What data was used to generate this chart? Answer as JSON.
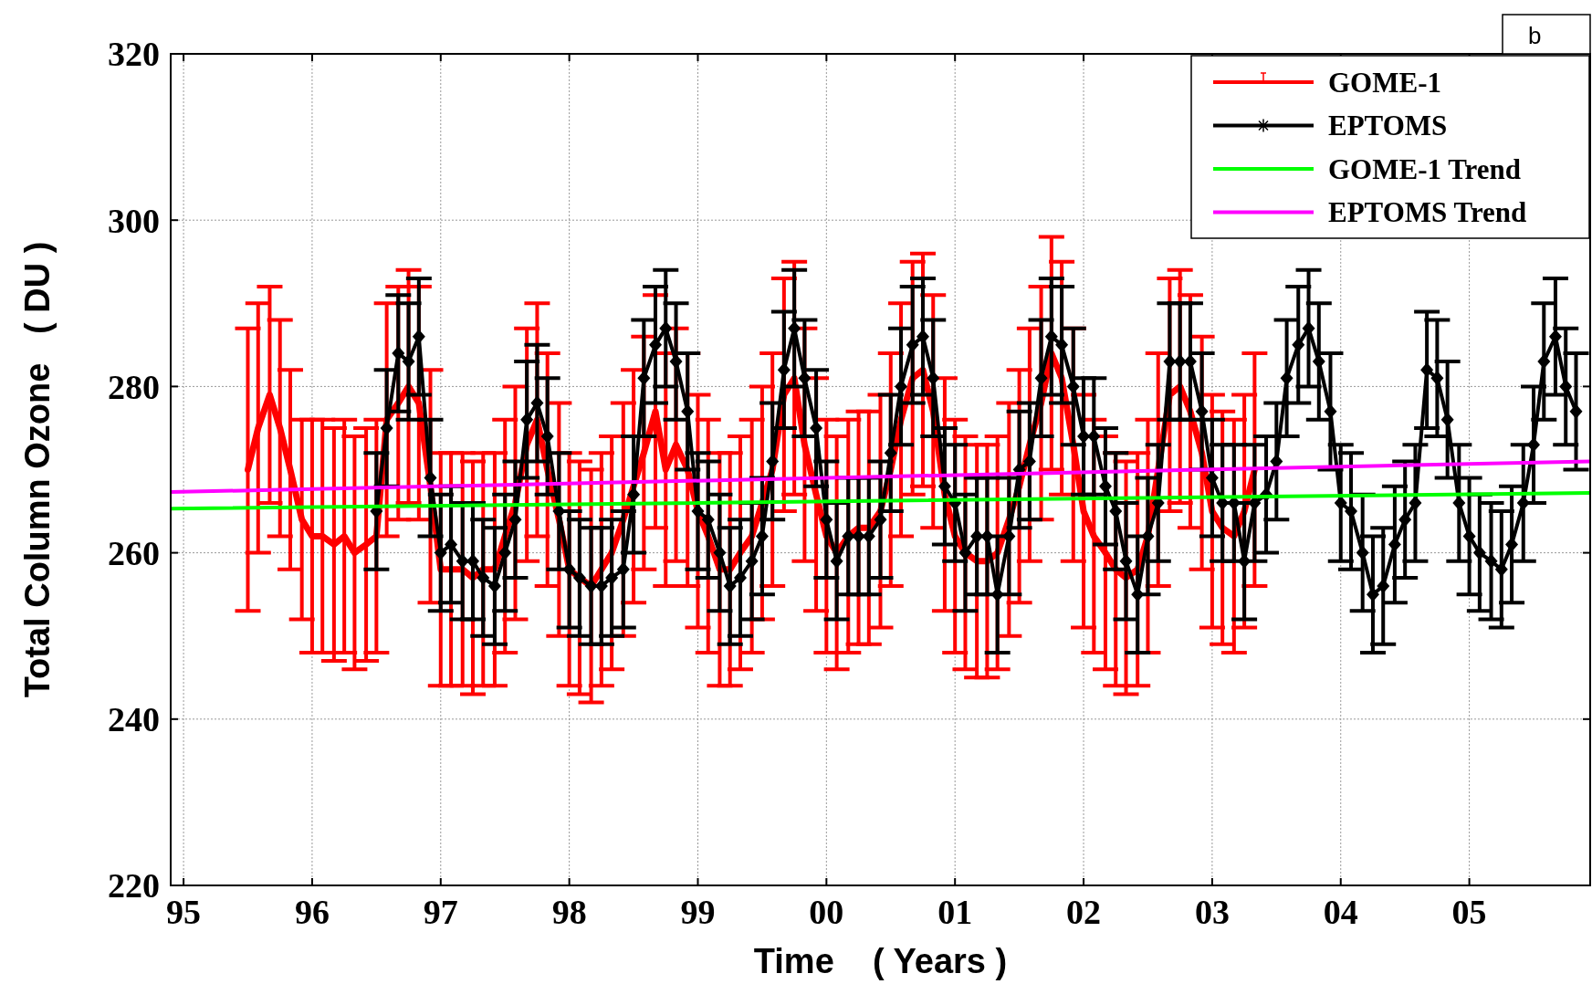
{
  "chart_data": {
    "type": "line",
    "xlabel": "Time    ( Years )",
    "ylabel": "Total Column Ozone   ( DU )",
    "annotations": [
      "b"
    ],
    "xlim": [
      1994.9,
      2005.94
    ],
    "xticks": [
      {
        "value": 1995,
        "label": "95"
      },
      {
        "value": 1996,
        "label": "96"
      },
      {
        "value": 1997,
        "label": "97"
      },
      {
        "value": 1998,
        "label": "98"
      },
      {
        "value": 1999,
        "label": "99"
      },
      {
        "value": 2000,
        "label": "00"
      },
      {
        "value": 2001,
        "label": "01"
      },
      {
        "value": 2002,
        "label": "02"
      },
      {
        "value": 2003,
        "label": "03"
      },
      {
        "value": 2004,
        "label": "04"
      },
      {
        "value": 2005,
        "label": "05"
      }
    ],
    "ylim": [
      220,
      320
    ],
    "yticks": [
      220,
      240,
      260,
      280,
      300,
      320
    ],
    "grid": true,
    "legend": "top right",
    "series": [
      {
        "name": "GOME-1",
        "color": "#ff0000",
        "marker": "none",
        "x": [
          1995.5,
          1995.58,
          1995.67,
          1995.75,
          1995.83,
          1995.92,
          1996,
          1996.08,
          1996.17,
          1996.25,
          1996.33,
          1996.42,
          1996.5,
          1996.58,
          1996.67,
          1996.75,
          1996.83,
          1996.92,
          1997,
          1997.08,
          1997.17,
          1997.25,
          1997.33,
          1997.42,
          1997.5,
          1997.58,
          1997.67,
          1997.75,
          1997.83,
          1997.92,
          1998,
          1998.08,
          1998.17,
          1998.25,
          1998.33,
          1998.42,
          1998.5,
          1998.58,
          1998.67,
          1998.75,
          1998.83,
          1998.92,
          1999,
          1999.08,
          1999.17,
          1999.25,
          1999.33,
          1999.42,
          1999.5,
          1999.58,
          1999.67,
          1999.75,
          1999.83,
          1999.92,
          2000,
          2000.08,
          2000.17,
          2000.25,
          2000.33,
          2000.42,
          2000.5,
          2000.58,
          2000.67,
          2000.75,
          2000.83,
          2000.92,
          2001,
          2001.08,
          2001.17,
          2001.25,
          2001.33,
          2001.42,
          2001.5,
          2001.58,
          2001.67,
          2001.75,
          2001.83,
          2001.92,
          2002,
          2002.08,
          2002.17,
          2002.25,
          2002.33,
          2002.42,
          2002.5,
          2002.58,
          2002.67,
          2002.75,
          2002.83,
          2002.92,
          2003,
          2003.08,
          2003.17,
          2003.25,
          2003.33
        ],
        "values": [
          270,
          275,
          279,
          275,
          270,
          264,
          262,
          262,
          261,
          262,
          260,
          261,
          262,
          276,
          278,
          280,
          278,
          268,
          258,
          258,
          258,
          257,
          258,
          258,
          262,
          266,
          273,
          276,
          270,
          264,
          258,
          257,
          256,
          258,
          260,
          264,
          268,
          272,
          277,
          270,
          273,
          270,
          265,
          262,
          258,
          258,
          260,
          262,
          266,
          270,
          279,
          281,
          273,
          267,
          262,
          260,
          262,
          263,
          263,
          265,
          270,
          276,
          281,
          282,
          277,
          267,
          262,
          260,
          259,
          259,
          260,
          264,
          268,
          273,
          278,
          284,
          281,
          273,
          265,
          262,
          260,
          258,
          257,
          258,
          262,
          270,
          279,
          280,
          277,
          272,
          265,
          263,
          262,
          265,
          270
        ],
        "errors": [
          17,
          15,
          13,
          13,
          12,
          12,
          14,
          14,
          14,
          14,
          14,
          14,
          14,
          14,
          14,
          14,
          14,
          14,
          14,
          14,
          14,
          14,
          14,
          14,
          14,
          14,
          14,
          14,
          14,
          14,
          14,
          14,
          14,
          14,
          14,
          14,
          14,
          14,
          14,
          14,
          14,
          14,
          14,
          14,
          14,
          14,
          14,
          14,
          14,
          14,
          14,
          14,
          14,
          14,
          14,
          14,
          14,
          14,
          14,
          14,
          14,
          14,
          14,
          14,
          14,
          14,
          14,
          14,
          14,
          14,
          14,
          14,
          14,
          14,
          14,
          14,
          14,
          14,
          14,
          14,
          14,
          14,
          14,
          14,
          14,
          14,
          14,
          14,
          14,
          14,
          14,
          14,
          14,
          14,
          14
        ]
      },
      {
        "name": "EPTOMS",
        "color": "#000000",
        "marker": "diamond",
        "x": [
          1996.5,
          1996.58,
          1996.67,
          1996.75,
          1996.83,
          1996.92,
          1997,
          1997.08,
          1997.17,
          1997.25,
          1997.33,
          1997.42,
          1997.5,
          1997.58,
          1997.67,
          1997.75,
          1997.83,
          1997.92,
          1998,
          1998.08,
          1998.17,
          1998.25,
          1998.33,
          1998.42,
          1998.5,
          1998.58,
          1998.67,
          1998.75,
          1998.83,
          1998.92,
          1999,
          1999.08,
          1999.17,
          1999.25,
          1999.33,
          1999.42,
          1999.5,
          1999.58,
          1999.67,
          1999.75,
          1999.83,
          1999.92,
          2000,
          2000.08,
          2000.17,
          2000.25,
          2000.33,
          2000.42,
          2000.5,
          2000.58,
          2000.67,
          2000.75,
          2000.83,
          2000.92,
          2001,
          2001.08,
          2001.17,
          2001.25,
          2001.33,
          2001.42,
          2001.5,
          2001.58,
          2001.67,
          2001.75,
          2001.83,
          2001.92,
          2002,
          2002.08,
          2002.17,
          2002.25,
          2002.33,
          2002.42,
          2002.5,
          2002.58,
          2002.67,
          2002.75,
          2002.83,
          2002.92,
          2003,
          2003.08,
          2003.17,
          2003.25,
          2003.33,
          2003.42,
          2003.5,
          2003.58,
          2003.67,
          2003.75,
          2003.83,
          2003.92,
          2004,
          2004.08,
          2004.17,
          2004.25,
          2004.33,
          2004.42,
          2004.5,
          2004.58,
          2004.67,
          2004.75,
          2004.83,
          2004.92,
          2005,
          2005.08,
          2005.17,
          2005.25,
          2005.33,
          2005.42,
          2005.5,
          2005.58,
          2005.67,
          2005.75,
          2005.83
        ],
        "values": [
          265,
          275,
          284,
          283,
          286,
          269,
          260,
          261,
          259,
          259,
          257,
          256,
          260,
          264,
          276,
          278,
          274,
          265,
          258,
          257,
          256,
          256,
          257,
          258,
          267,
          281,
          285,
          287,
          283,
          277,
          265,
          264,
          260,
          256,
          257,
          259,
          262,
          271,
          282,
          287,
          281,
          275,
          264,
          259,
          262,
          262,
          262,
          264,
          272,
          280,
          285,
          286,
          281,
          268,
          266,
          260,
          262,
          262,
          255,
          262,
          270,
          271,
          281,
          286,
          285,
          280,
          274,
          274,
          268,
          265,
          259,
          255,
          262,
          266,
          283,
          283,
          283,
          277,
          269,
          266,
          266,
          259,
          266,
          267,
          271,
          281,
          285,
          287,
          283,
          277,
          266,
          265,
          260,
          255,
          256,
          261,
          264,
          266,
          282,
          281,
          276,
          266,
          262,
          260,
          259,
          258,
          261,
          266,
          273,
          283,
          286,
          280,
          277
        ],
        "errors": [
          7,
          7,
          7,
          7,
          7,
          7,
          7,
          7,
          7,
          7,
          7,
          7,
          7,
          7,
          7,
          7,
          7,
          7,
          7,
          7,
          7,
          7,
          7,
          7,
          7,
          7,
          7,
          7,
          7,
          7,
          7,
          7,
          7,
          7,
          7,
          7,
          7,
          7,
          7,
          7,
          7,
          7,
          7,
          7,
          7,
          7,
          7,
          7,
          7,
          7,
          7,
          7,
          7,
          7,
          7,
          7,
          7,
          7,
          7,
          7,
          7,
          7,
          7,
          7,
          7,
          7,
          7,
          7,
          7,
          7,
          7,
          7,
          7,
          7,
          7,
          7,
          7,
          7,
          7,
          7,
          7,
          7,
          7,
          7,
          7,
          7,
          7,
          7,
          7,
          7,
          7,
          7,
          7,
          7,
          7,
          7,
          7,
          7,
          7,
          7,
          7,
          7,
          7,
          7,
          7,
          7,
          7,
          7,
          7,
          7,
          7,
          7,
          7
        ]
      },
      {
        "name": "GOME-1 Trend",
        "color": "#00ff00",
        "marker": "none",
        "x": [
          1994.9,
          2005.94
        ],
        "values": [
          265.3,
          267.2
        ]
      },
      {
        "name": "EPTOMS Trend",
        "color": "#ff00ff",
        "marker": "none",
        "x": [
          1994.9,
          2005.94
        ],
        "values": [
          267.3,
          271.0
        ]
      }
    ]
  }
}
